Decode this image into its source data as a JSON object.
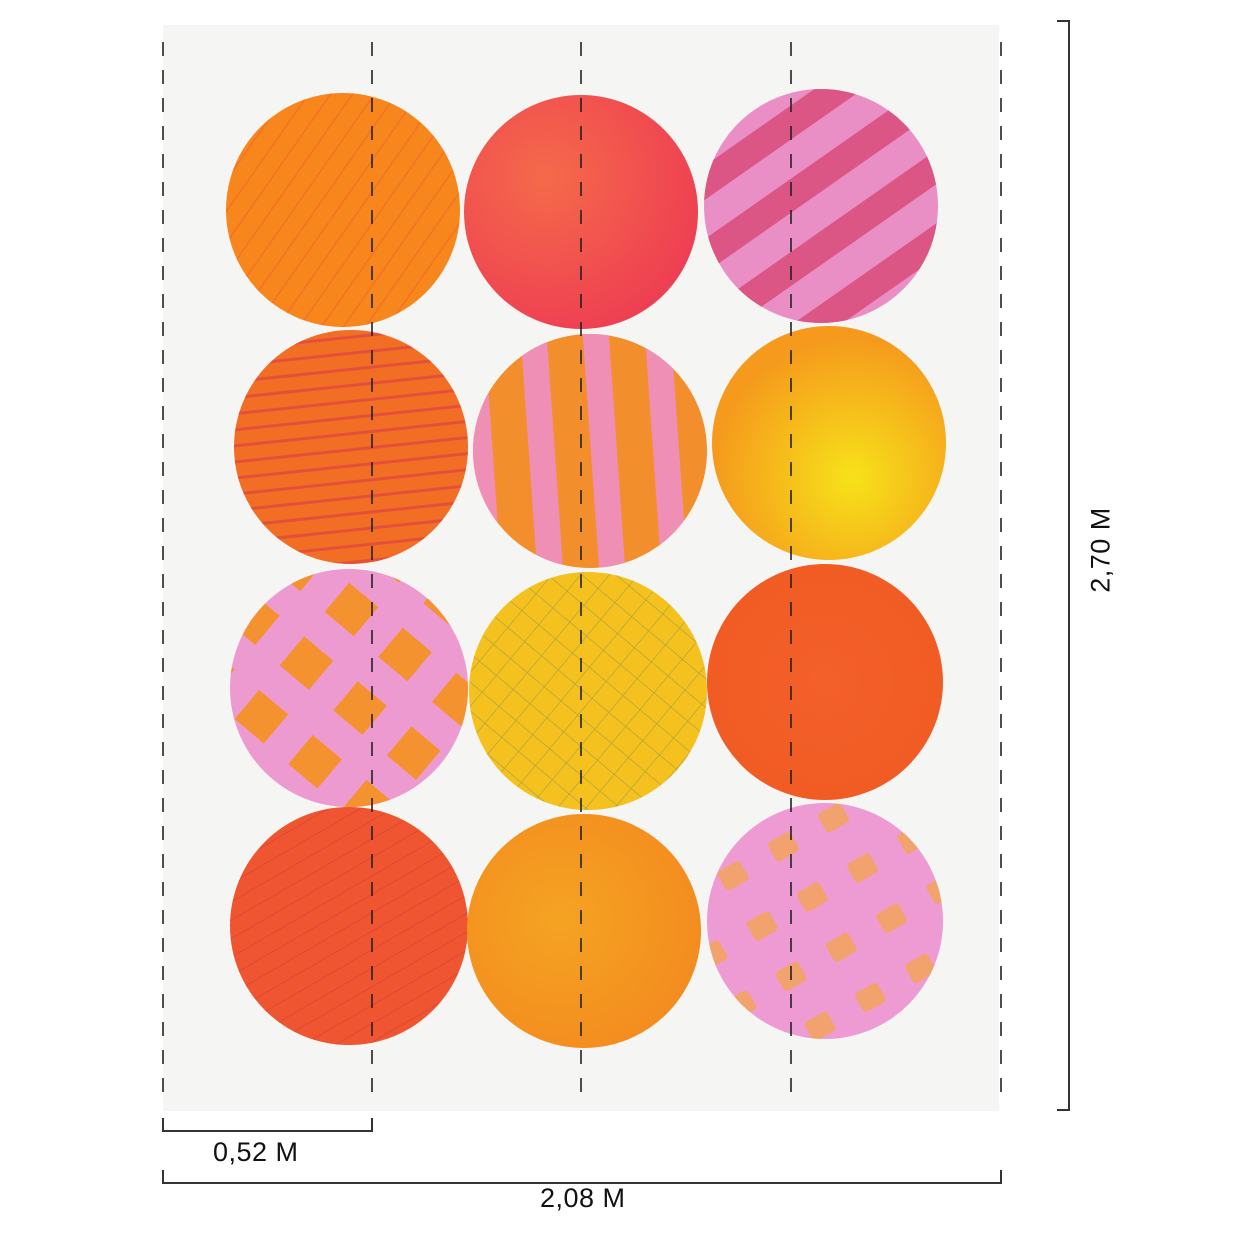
{
  "mural": {
    "circles": [
      {
        "id": "r1c1",
        "base": "#f7871c",
        "accent": "#f2602a",
        "pattern": "crosshatch-lines"
      },
      {
        "id": "r1c2",
        "base": "#ee3f52",
        "accent": "#f56a4a",
        "pattern": "brush"
      },
      {
        "id": "r1c3",
        "base": "#ea8fc6",
        "accent": "#d9436f",
        "pattern": "diagonal-stripes"
      },
      {
        "id": "r2c1",
        "base": "#f26e25",
        "accent": "#e24a3a",
        "pattern": "horizontal-lines"
      },
      {
        "id": "r2c2",
        "base": "#f38e2d",
        "accent": "#ef8fc6",
        "pattern": "vertical-stripes"
      },
      {
        "id": "r2c3",
        "base": "#f7a21c",
        "accent": "#f7e21a",
        "pattern": "brush"
      },
      {
        "id": "r3c1",
        "base": "#ec9ad0",
        "accent": "#f49230",
        "pattern": "diamonds"
      },
      {
        "id": "r3c2",
        "base": "#f5c11e",
        "accent": "#9fa14a",
        "pattern": "grid-lines"
      },
      {
        "id": "r3c3",
        "base": "#f25e24",
        "accent": "#f47a35",
        "pattern": "brush"
      },
      {
        "id": "r4c1",
        "base": "#ef5530",
        "accent": "#d9403a",
        "pattern": "diagonal-lines"
      },
      {
        "id": "r4c2",
        "base": "#f5981f",
        "accent": "#f2b12a",
        "pattern": "brush"
      },
      {
        "id": "r4c3",
        "base": "#ed9bd2",
        "accent": "#f4a45a",
        "pattern": "dots"
      }
    ],
    "background": "#f5f5f3"
  },
  "dimensions": {
    "panel_width": "0,52 M",
    "total_width": "2,08 M",
    "height": "2,70 M"
  }
}
